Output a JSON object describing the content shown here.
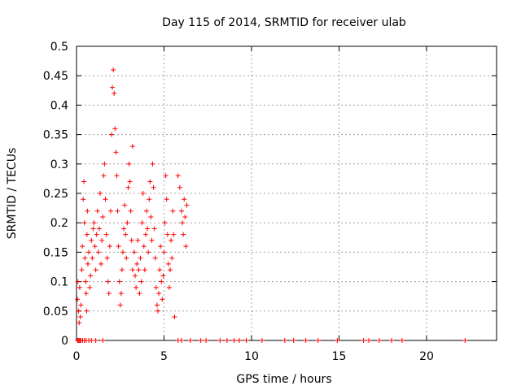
{
  "chart_data": {
    "type": "scatter",
    "title": "Day 115 of 2014, SRMTID for receiver ulab",
    "xlabel": "GPS time / hours",
    "ylabel": "SRMTID / TECUs",
    "xlim": [
      0,
      24
    ],
    "ylim": [
      0,
      0.5
    ],
    "x_ticks": [
      {
        "value": 0,
        "label": "0"
      },
      {
        "value": 5,
        "label": "5"
      },
      {
        "value": 10,
        "label": "10"
      },
      {
        "value": 15,
        "label": "15"
      },
      {
        "value": 20,
        "label": "20"
      }
    ],
    "y_ticks": [
      {
        "value": 0,
        "label": "0"
      },
      {
        "value": 0.05,
        "label": "0.05"
      },
      {
        "value": 0.1,
        "label": "0.1"
      },
      {
        "value": 0.15,
        "label": "0.15"
      },
      {
        "value": 0.2,
        "label": "0.2"
      },
      {
        "value": 0.25,
        "label": "0.25"
      },
      {
        "value": 0.3,
        "label": "0.3"
      },
      {
        "value": 0.35,
        "label": "0.35"
      },
      {
        "value": 0.4,
        "label": "0.4"
      },
      {
        "value": 0.45,
        "label": "0.45"
      },
      {
        "value": 0.5,
        "label": "0.5"
      }
    ],
    "grid": true,
    "marker": "plus",
    "marker_color": "#ff0000",
    "series": [
      {
        "x": [
          0.05,
          0.1,
          0.15,
          0.2,
          0.25,
          0.35,
          0.45,
          0.55,
          0.7,
          0.85,
          1.1,
          1.5,
          5.8,
          6.0,
          6.5,
          7.1,
          7.4,
          8.2,
          8.6,
          9.0,
          9.3,
          9.7,
          10.6,
          11.9,
          12.4,
          13.1,
          13.8,
          14.9,
          16.4,
          16.7,
          17.3,
          18.0,
          18.6,
          22.2
        ],
        "y": [
          0,
          0,
          0,
          0,
          0,
          0,
          0,
          0,
          0,
          0,
          0,
          0,
          0,
          0,
          0,
          0,
          0,
          0,
          0,
          0,
          0,
          0,
          0,
          0,
          0,
          0,
          0,
          0,
          0,
          0,
          0,
          0,
          0,
          0
        ]
      },
      {
        "x": [
          0.05,
          0.08,
          0.12,
          0.15,
          0.18,
          0.22,
          0.25,
          0.3,
          0.33,
          0.38,
          0.42,
          0.45,
          0.48,
          0.52,
          0.55,
          0.58,
          0.6,
          0.62,
          0.65,
          0.7,
          0.75,
          0.8,
          0.85,
          0.9,
          0.95,
          1.0,
          1.05,
          1.1,
          1.15,
          1.2,
          1.25,
          1.3,
          1.35,
          1.4,
          1.45,
          1.5,
          1.55,
          1.6,
          1.65,
          1.7,
          1.75,
          1.8,
          1.85,
          1.9,
          1.95,
          2.0,
          2.05,
          2.1,
          2.15,
          2.2,
          2.25,
          2.3,
          2.35,
          2.4,
          2.45,
          2.5,
          2.55,
          2.6,
          2.65,
          2.7,
          2.75,
          2.8,
          2.85,
          2.9,
          2.95,
          3.0,
          3.05,
          3.1,
          3.15,
          3.2
        ],
        "y": [
          0.07,
          0.1,
          0.05,
          0.03,
          0.09,
          0.04,
          0.06,
          0.12,
          0.16,
          0.24,
          0.27,
          0.2,
          0.14,
          0.1,
          0.08,
          0.05,
          0.18,
          0.22,
          0.13,
          0.15,
          0.09,
          0.11,
          0.17,
          0.14,
          0.19,
          0.2,
          0.16,
          0.12,
          0.18,
          0.22,
          0.15,
          0.19,
          0.25,
          0.13,
          0.17,
          0.21,
          0.28,
          0.3,
          0.24,
          0.18,
          0.14,
          0.1,
          0.08,
          0.16,
          0.22,
          0.35,
          0.43,
          0.46,
          0.42,
          0.36,
          0.32,
          0.28,
          0.22,
          0.16,
          0.1,
          0.06,
          0.08,
          0.12,
          0.15,
          0.19,
          0.23,
          0.18,
          0.14,
          0.2,
          0.26,
          0.3,
          0.27,
          0.22,
          0.17,
          0.12
        ]
      },
      {
        "x": [
          3.2,
          3.3,
          3.35,
          3.4,
          3.45,
          3.5,
          3.55,
          3.6,
          3.65,
          3.7,
          3.75,
          3.8,
          3.85,
          3.9,
          3.95,
          4.0,
          4.05,
          4.1,
          4.15,
          4.2,
          4.25,
          4.3,
          4.35,
          4.4,
          4.45,
          4.5,
          4.55,
          4.6,
          4.65,
          4.7,
          4.75,
          4.8,
          4.85,
          4.9,
          4.95,
          5.0,
          5.05,
          5.1,
          5.15,
          5.2,
          5.25,
          5.3,
          5.35,
          5.4,
          5.45,
          5.5,
          5.55,
          5.6,
          5.8,
          5.9,
          6.0,
          6.05,
          6.1,
          6.15,
          6.2,
          6.25,
          6.3
        ],
        "y": [
          0.33,
          0.15,
          0.11,
          0.09,
          0.13,
          0.17,
          0.12,
          0.08,
          0.14,
          0.1,
          0.2,
          0.25,
          0.16,
          0.12,
          0.18,
          0.22,
          0.19,
          0.15,
          0.24,
          0.27,
          0.21,
          0.17,
          0.3,
          0.26,
          0.19,
          0.14,
          0.09,
          0.06,
          0.05,
          0.08,
          0.12,
          0.16,
          0.1,
          0.07,
          0.11,
          0.15,
          0.2,
          0.28,
          0.24,
          0.18,
          0.13,
          0.09,
          0.12,
          0.17,
          0.14,
          0.22,
          0.18,
          0.04,
          0.28,
          0.26,
          0.22,
          0.2,
          0.18,
          0.24,
          0.21,
          0.16,
          0.23
        ]
      }
    ]
  }
}
